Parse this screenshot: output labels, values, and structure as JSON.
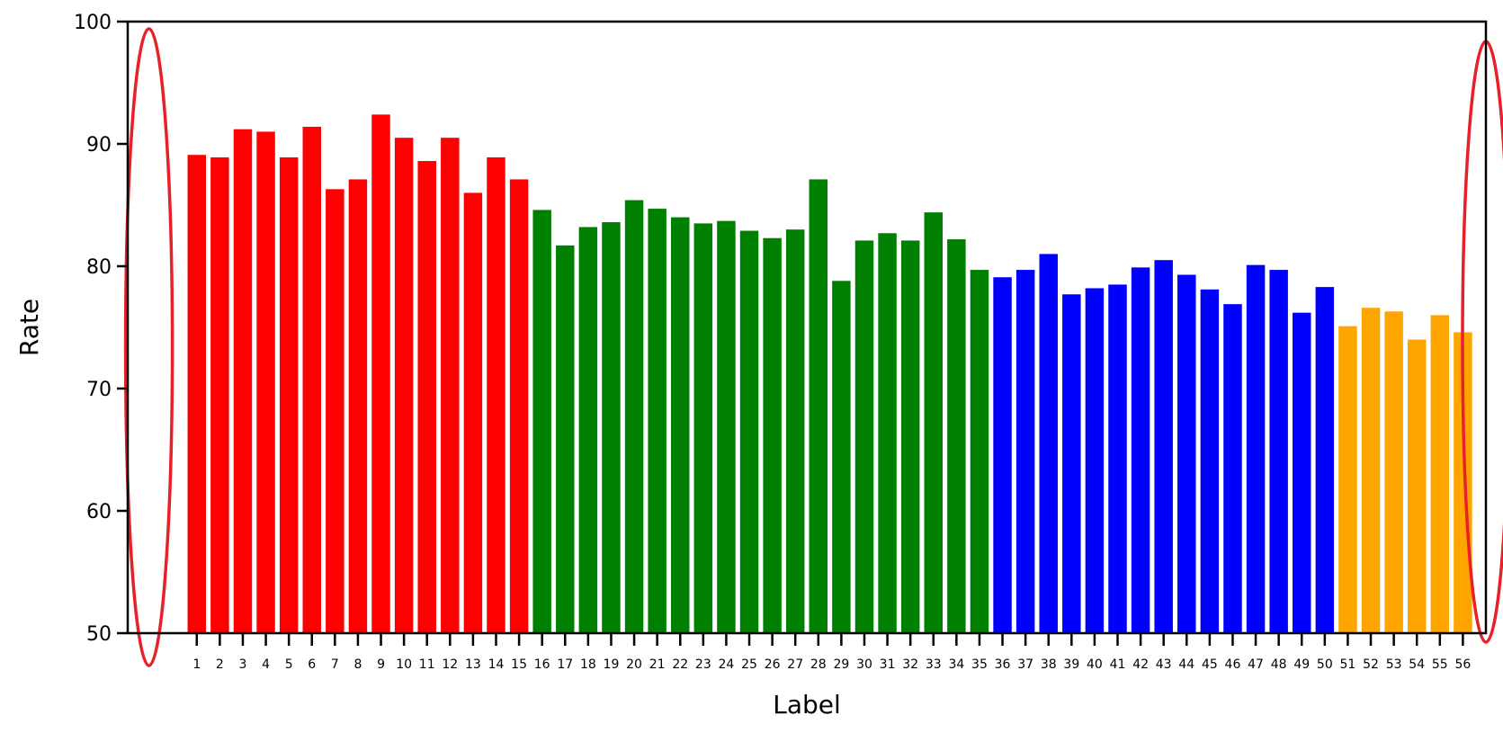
{
  "chart_data": {
    "type": "bar",
    "xlabel": "Label",
    "ylabel": "Rate",
    "ylim": [
      50,
      100
    ],
    "yticks": [
      50,
      60,
      70,
      80,
      90,
      100
    ],
    "grid": false,
    "categories": [
      "1",
      "2",
      "3",
      "4",
      "5",
      "6",
      "7",
      "8",
      "9",
      "10",
      "11",
      "12",
      "13",
      "14",
      "15",
      "16",
      "17",
      "18",
      "19",
      "20",
      "21",
      "22",
      "23",
      "24",
      "25",
      "26",
      "27",
      "28",
      "29",
      "30",
      "31",
      "32",
      "33",
      "34",
      "35",
      "36",
      "37",
      "38",
      "39",
      "40",
      "41",
      "42",
      "43",
      "44",
      "45",
      "46",
      "47",
      "48",
      "49",
      "50",
      "51",
      "52",
      "53",
      "54",
      "55",
      "56"
    ],
    "values": [
      89.1,
      88.9,
      91.2,
      91.0,
      88.9,
      91.4,
      86.3,
      87.1,
      92.4,
      90.5,
      88.6,
      90.5,
      86.0,
      88.9,
      87.1,
      84.6,
      81.7,
      83.2,
      83.6,
      85.4,
      84.7,
      84.0,
      83.5,
      83.7,
      82.9,
      82.3,
      83.0,
      87.1,
      78.8,
      82.1,
      82.7,
      82.1,
      84.4,
      82.2,
      79.7,
      79.1,
      79.7,
      81.0,
      77.7,
      78.2,
      78.5,
      79.9,
      80.5,
      79.3,
      78.1,
      76.9,
      80.1,
      79.7,
      76.2,
      78.3,
      75.1,
      76.6,
      76.3,
      74.0,
      76.0,
      74.6
    ],
    "group_colors": [
      {
        "from": 1,
        "to": 15,
        "color": "#ff0000"
      },
      {
        "from": 16,
        "to": 35,
        "color": "#008000"
      },
      {
        "from": 36,
        "to": 50,
        "color": "#0000ff"
      },
      {
        "from": 51,
        "to": 56,
        "color": "#ffa500"
      }
    ],
    "annotations": [
      {
        "type": "ellipse",
        "position": "left-empty-region",
        "color": "#e8202a"
      },
      {
        "type": "ellipse",
        "position": "right-empty-region",
        "color": "#e8202a"
      }
    ]
  }
}
